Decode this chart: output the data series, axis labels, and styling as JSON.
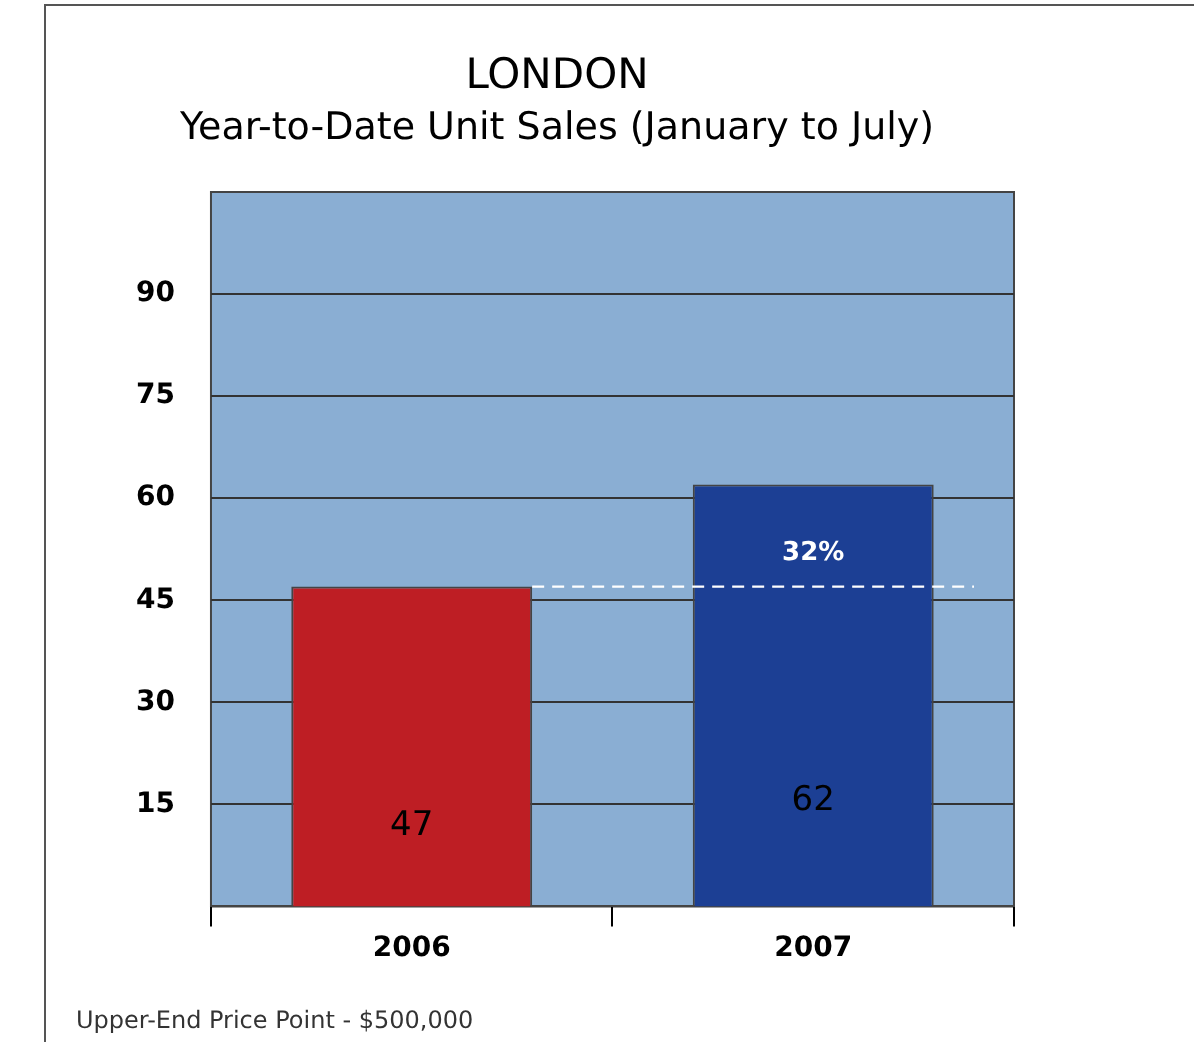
{
  "chart_data": {
    "type": "bar",
    "title": "LONDON",
    "subtitle": "Year-to-Date Unit Sales (January to July)",
    "categories": [
      "2006",
      "2007"
    ],
    "values": [
      47,
      62
    ],
    "colors": [
      "#be1e24",
      "#1c3f94"
    ],
    "ylim": [
      0,
      105
    ],
    "yticks": [
      15,
      30,
      45,
      60,
      75,
      90
    ],
    "grid": "y",
    "legend": false,
    "data_labels": true,
    "ref_lines": [
      {
        "axis": "y",
        "value": 47,
        "color": "#ffffff",
        "line_style": "dashed"
      }
    ],
    "annotations": [
      {
        "text": "32%",
        "x": "2007",
        "y": 47
      },
      "Upper-End Price Point - $500,000"
    ]
  }
}
